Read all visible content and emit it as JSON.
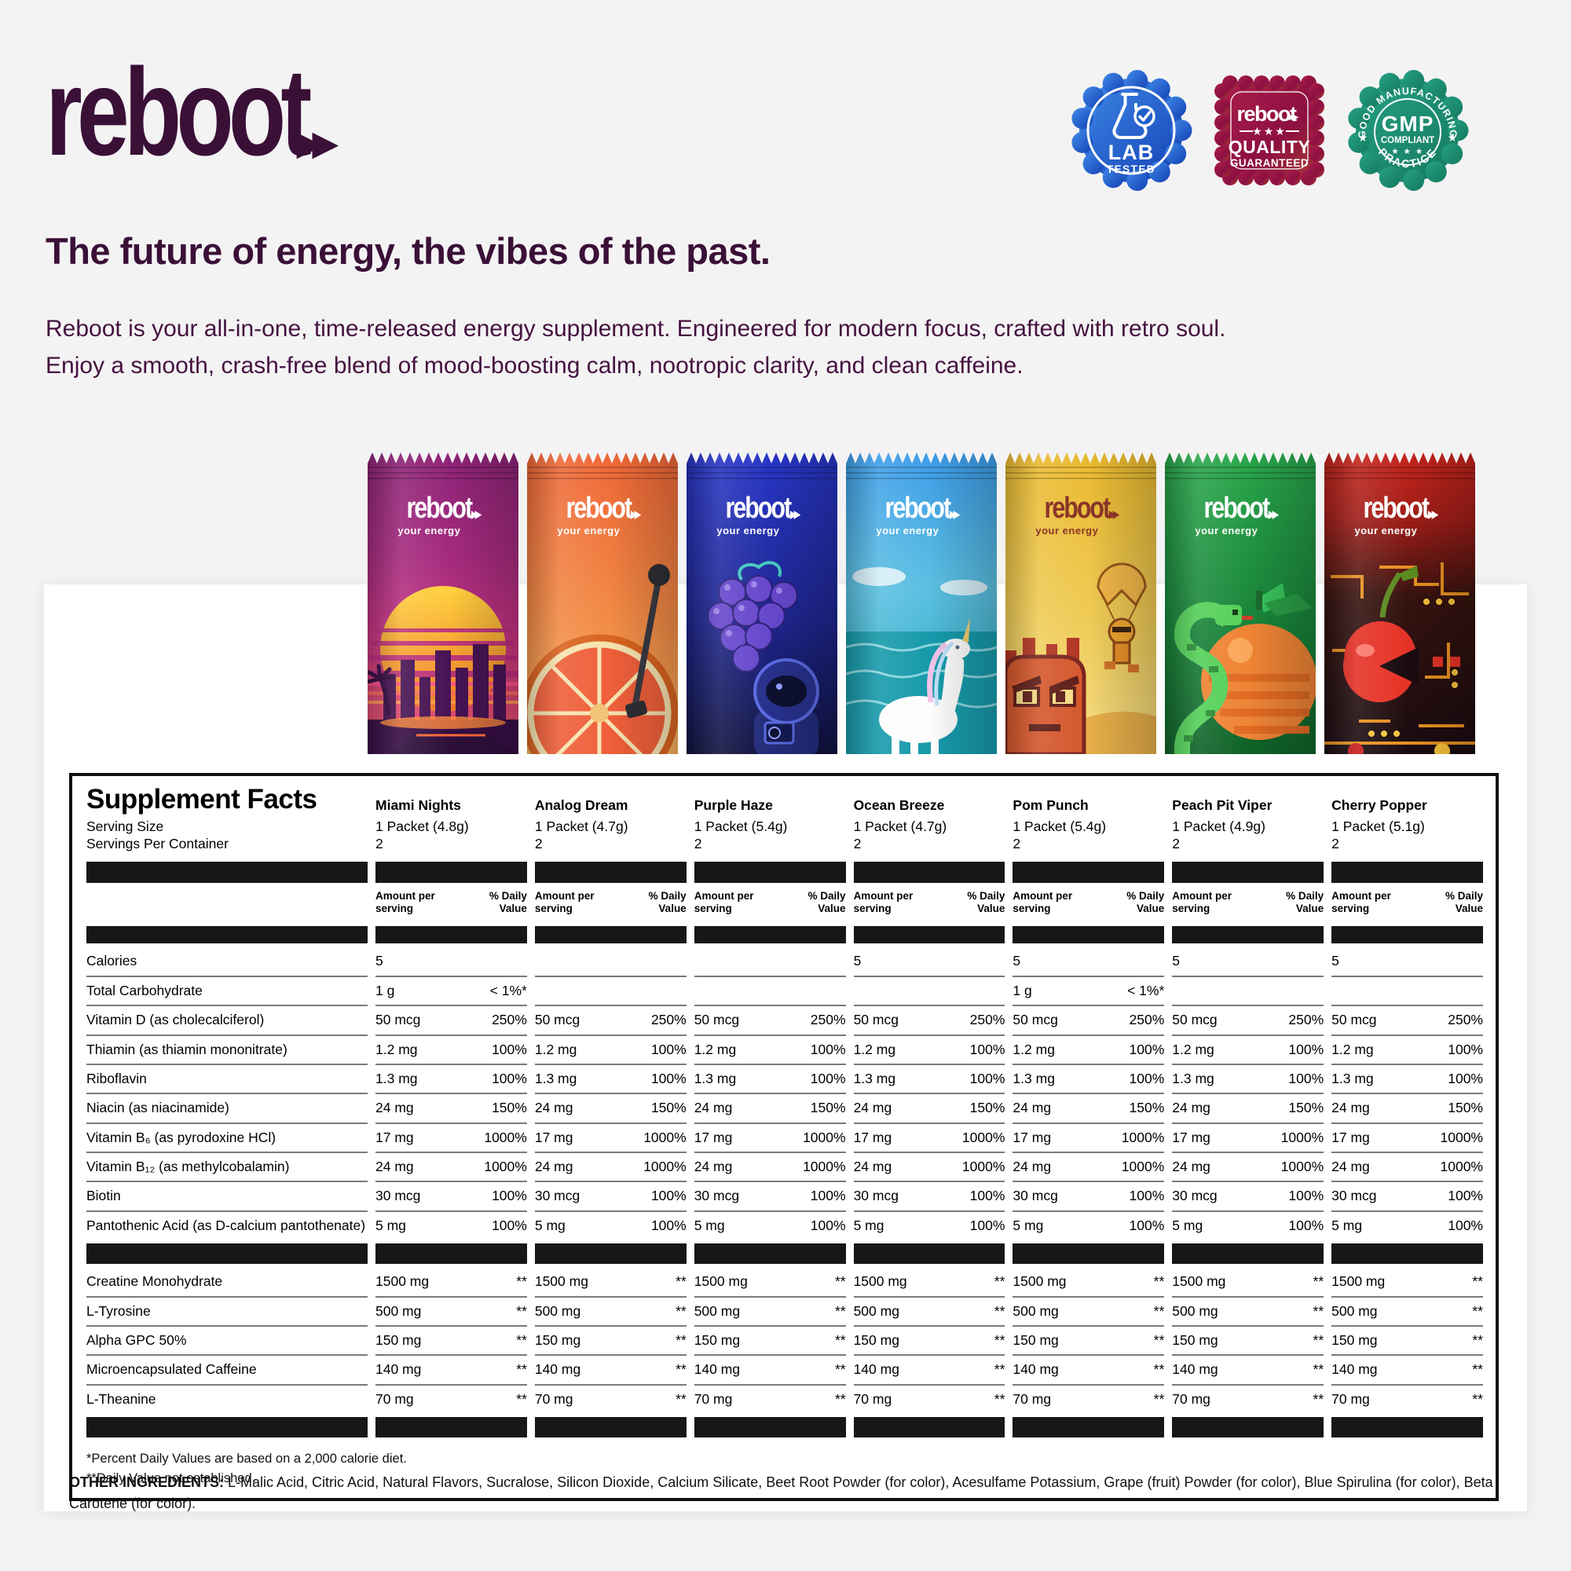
{
  "brand": {
    "logo_text": "reboot",
    "arrows": "▶▶",
    "tagline": "your energy",
    "accent_color": "#3a1037"
  },
  "badges": [
    {
      "name": "lab-tested",
      "line1": "LAB",
      "line2": "TESTED",
      "color": "#1f5ecb"
    },
    {
      "name": "quality-guaranteed",
      "brand": "reboot",
      "stars": "★★★",
      "line1": "QUALITY",
      "line2": "GUARANTEED",
      "color": "#8c1040"
    },
    {
      "name": "gmp-compliant",
      "top_text": "GOOD MANUFACTURING",
      "center": "GMP",
      "sub": "COMPLIANT",
      "stars": "★ ★ ★",
      "side_star": "★",
      "bottom_text": "PRACTICE",
      "color": "#1d8f74"
    }
  ],
  "headline": "The future of energy, the vibes of the past.",
  "description": "Reboot is your all-in-one, time-released energy supplement. Engineered for modern focus, crafted with retro soul. Enjoy a smooth, crash-free blend of mood-boosting calm, nootropic clarity, and clean caffeine.",
  "packets": [
    {
      "flavor": "Miami Nights",
      "accent": "#c43380"
    },
    {
      "flavor": "Analog Dream",
      "accent": "#f28a45"
    },
    {
      "flavor": "Purple Haze",
      "accent": "#2836c8"
    },
    {
      "flavor": "Ocean Breeze",
      "accent": "#3d9ce9"
    },
    {
      "flavor": "Pom Punch",
      "accent": "#efcb56"
    },
    {
      "flavor": "Peach Pit Viper",
      "accent": "#188238"
    },
    {
      "flavor": "Cherry Popper",
      "accent": "#c6251d"
    }
  ],
  "table": {
    "title": "Supplement Facts",
    "serving_size_label": "Serving Size",
    "servings_label": "Servings Per Container",
    "amount_header": "Amount per serving",
    "dv_header": "% Daily Value",
    "columns": [
      {
        "flavor": "Miami Nights",
        "serving": "1 Packet (4.8g)",
        "servings": "2"
      },
      {
        "flavor": "Analog Dream",
        "serving": "1 Packet (4.7g)",
        "servings": "2"
      },
      {
        "flavor": "Purple Haze",
        "serving": "1 Packet (5.4g)",
        "servings": "2"
      },
      {
        "flavor": "Ocean Breeze",
        "serving": "1 Packet (4.7g)",
        "servings": "2"
      },
      {
        "flavor": "Pom Punch",
        "serving": "1 Packet (5.4g)",
        "servings": "2"
      },
      {
        "flavor": "Peach Pit Viper",
        "serving": "1 Packet (4.9g)",
        "servings": "2"
      },
      {
        "flavor": "Cherry Popper",
        "serving": "1 Packet (5.1g)",
        "servings": "2"
      }
    ],
    "rows": [
      {
        "label": "Calories",
        "cells": [
          [
            "5",
            ""
          ],
          [
            "",
            ""
          ],
          [
            "",
            ""
          ],
          [
            "5",
            ""
          ],
          [
            "5",
            ""
          ],
          [
            "5",
            ""
          ],
          [
            "5",
            ""
          ]
        ]
      },
      {
        "label": "Total Carbohydrate",
        "cells": [
          [
            "1 g",
            "< 1%*"
          ],
          [
            "",
            ""
          ],
          [
            "",
            ""
          ],
          [
            "",
            ""
          ],
          [
            "1 g",
            "< 1%*"
          ],
          [
            "",
            ""
          ],
          [
            "",
            ""
          ]
        ]
      },
      {
        "label": "Vitamin D (as cholecalciferol)",
        "cells": [
          [
            "50 mcg",
            "250%"
          ],
          [
            "50 mcg",
            "250%"
          ],
          [
            "50 mcg",
            "250%"
          ],
          [
            "50 mcg",
            "250%"
          ],
          [
            "50 mcg",
            "250%"
          ],
          [
            "50 mcg",
            "250%"
          ],
          [
            "50 mcg",
            "250%"
          ]
        ]
      },
      {
        "label": "Thiamin (as thiamin mononitrate)",
        "cells": [
          [
            "1.2 mg",
            "100%"
          ],
          [
            "1.2 mg",
            "100%"
          ],
          [
            "1.2 mg",
            "100%"
          ],
          [
            "1.2 mg",
            "100%"
          ],
          [
            "1.2 mg",
            "100%"
          ],
          [
            "1.2 mg",
            "100%"
          ],
          [
            "1.2 mg",
            "100%"
          ]
        ]
      },
      {
        "label": "Riboflavin",
        "cells": [
          [
            "1.3 mg",
            "100%"
          ],
          [
            "1.3 mg",
            "100%"
          ],
          [
            "1.3 mg",
            "100%"
          ],
          [
            "1.3 mg",
            "100%"
          ],
          [
            "1.3 mg",
            "100%"
          ],
          [
            "1.3 mg",
            "100%"
          ],
          [
            "1.3 mg",
            "100%"
          ]
        ]
      },
      {
        "label": "Niacin (as niacinamide)",
        "cells": [
          [
            "24 mg",
            "150%"
          ],
          [
            "24 mg",
            "150%"
          ],
          [
            "24 mg",
            "150%"
          ],
          [
            "24 mg",
            "150%"
          ],
          [
            "24 mg",
            "150%"
          ],
          [
            "24 mg",
            "150%"
          ],
          [
            "24 mg",
            "150%"
          ]
        ]
      },
      {
        "label": "Vitamin B₆ (as pyrodoxine HCl)",
        "cells": [
          [
            "17 mg",
            "1000%"
          ],
          [
            "17 mg",
            "1000%"
          ],
          [
            "17 mg",
            "1000%"
          ],
          [
            "17 mg",
            "1000%"
          ],
          [
            "17 mg",
            "1000%"
          ],
          [
            "17 mg",
            "1000%"
          ],
          [
            "17 mg",
            "1000%"
          ]
        ]
      },
      {
        "label": "Vitamin B₁₂ (as methylcobalamin)",
        "cells": [
          [
            "24 mg",
            "1000%"
          ],
          [
            "24 mg",
            "1000%"
          ],
          [
            "24 mg",
            "1000%"
          ],
          [
            "24 mg",
            "1000%"
          ],
          [
            "24 mg",
            "1000%"
          ],
          [
            "24 mg",
            "1000%"
          ],
          [
            "24 mg",
            "1000%"
          ]
        ]
      },
      {
        "label": "Biotin",
        "cells": [
          [
            "30 mcg",
            "100%"
          ],
          [
            "30 mcg",
            "100%"
          ],
          [
            "30 mcg",
            "100%"
          ],
          [
            "30 mcg",
            "100%"
          ],
          [
            "30 mcg",
            "100%"
          ],
          [
            "30 mcg",
            "100%"
          ],
          [
            "30 mcg",
            "100%"
          ]
        ]
      },
      {
        "label": "Pantothenic Acid (as D-calcium pantothenate)",
        "cells": [
          [
            "5 mg",
            "100%"
          ],
          [
            "5 mg",
            "100%"
          ],
          [
            "5 mg",
            "100%"
          ],
          [
            "5 mg",
            "100%"
          ],
          [
            "5 mg",
            "100%"
          ],
          [
            "5 mg",
            "100%"
          ],
          [
            "5 mg",
            "100%"
          ]
        ]
      }
    ],
    "rows2": [
      {
        "label": "Creatine Monohydrate",
        "cells": [
          [
            "1500 mg",
            "**"
          ],
          [
            "1500 mg",
            "**"
          ],
          [
            "1500 mg",
            "**"
          ],
          [
            "1500 mg",
            "**"
          ],
          [
            "1500 mg",
            "**"
          ],
          [
            "1500 mg",
            "**"
          ],
          [
            "1500 mg",
            "**"
          ]
        ]
      },
      {
        "label": "L-Tyrosine",
        "cells": [
          [
            "500 mg",
            "**"
          ],
          [
            "500 mg",
            "**"
          ],
          [
            "500 mg",
            "**"
          ],
          [
            "500 mg",
            "**"
          ],
          [
            "500 mg",
            "**"
          ],
          [
            "500 mg",
            "**"
          ],
          [
            "500 mg",
            "**"
          ]
        ]
      },
      {
        "label": "Alpha GPC 50%",
        "cells": [
          [
            "150 mg",
            "**"
          ],
          [
            "150 mg",
            "**"
          ],
          [
            "150 mg",
            "**"
          ],
          [
            "150 mg",
            "**"
          ],
          [
            "150 mg",
            "**"
          ],
          [
            "150 mg",
            "**"
          ],
          [
            "150 mg",
            "**"
          ]
        ]
      },
      {
        "label": "Microencapsulated Caffeine",
        "cells": [
          [
            "140 mg",
            "**"
          ],
          [
            "140 mg",
            "**"
          ],
          [
            "140 mg",
            "**"
          ],
          [
            "140 mg",
            "**"
          ],
          [
            "140 mg",
            "**"
          ],
          [
            "140 mg",
            "**"
          ],
          [
            "140 mg",
            "**"
          ]
        ]
      },
      {
        "label": "L-Theanine",
        "cells": [
          [
            "70 mg",
            "**"
          ],
          [
            "70 mg",
            "**"
          ],
          [
            "70 mg",
            "**"
          ],
          [
            "70 mg",
            "**"
          ],
          [
            "70 mg",
            "**"
          ],
          [
            "70 mg",
            "**"
          ],
          [
            "70 mg",
            "**"
          ]
        ]
      }
    ],
    "footnotes": [
      "*Percent Daily Values are based on a 2,000 calorie diet.",
      "**Daily Value not established."
    ]
  },
  "other_ingredients": {
    "label": "OTHER INGREDIENTS:",
    "text": " L-Malic Acid, Citric Acid, Natural Flavors, Sucralose, Silicon Dioxide, Calcium Silicate, Beet Root Powder (for color), Acesulfame Potassium, Grape (fruit) Powder (for color), Blue Spirulina (for color), Beta Carotene (for color)."
  }
}
